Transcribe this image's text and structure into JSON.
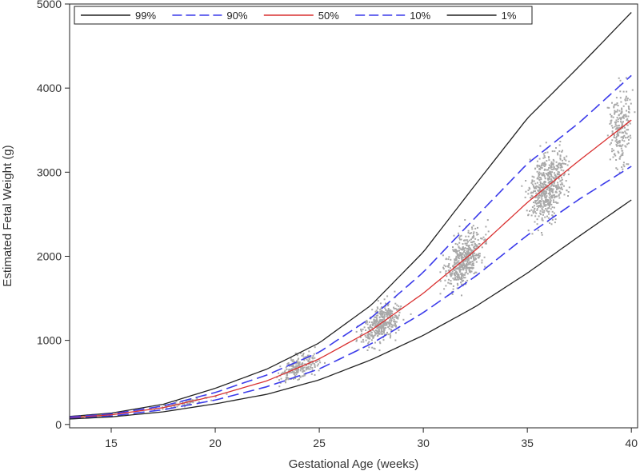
{
  "chart_data": {
    "type": "scatter",
    "title": "",
    "xlabel": "Gestational Age (weeks)",
    "ylabel": "Estimated Fetal Weight (g)",
    "xlim": [
      13,
      40.3
    ],
    "ylim": [
      -40,
      5000
    ],
    "xticks": [
      15,
      20,
      25,
      30,
      35,
      40
    ],
    "yticks": [
      0,
      1000,
      2000,
      3000,
      4000,
      5000
    ],
    "grid": false,
    "legend_position": "top",
    "series": [
      {
        "name": "99%",
        "style": "solid",
        "color": "#222222",
        "x": [
          13,
          15,
          17.5,
          20,
          22.5,
          25,
          27.5,
          30,
          32.5,
          35,
          37.5,
          40
        ],
        "values": [
          95,
          135,
          240,
          430,
          660,
          970,
          1420,
          2050,
          2850,
          3640,
          4260,
          4900
        ]
      },
      {
        "name": "90%",
        "style": "dashed",
        "color": "#3b3bea",
        "x": [
          13,
          15,
          17.5,
          20,
          22.5,
          25,
          27.5,
          30,
          32.5,
          35,
          37.5,
          40
        ],
        "values": [
          90,
          125,
          220,
          380,
          590,
          860,
          1270,
          1810,
          2460,
          3100,
          3590,
          4150
        ]
      },
      {
        "name": "50%",
        "style": "solid",
        "color": "#d93030",
        "x": [
          13,
          15,
          17.5,
          20,
          22.5,
          25,
          27.5,
          30,
          32.5,
          35,
          37.5,
          40
        ],
        "values": [
          80,
          115,
          200,
          340,
          520,
          780,
          1120,
          1560,
          2070,
          2640,
          3140,
          3620
        ]
      },
      {
        "name": "10%",
        "style": "dashed",
        "color": "#3b3bea",
        "x": [
          13,
          15,
          17.5,
          20,
          22.5,
          25,
          27.5,
          30,
          32.5,
          35,
          37.5,
          40
        ],
        "values": [
          72,
          100,
          175,
          290,
          450,
          660,
          960,
          1330,
          1760,
          2250,
          2680,
          3070
        ]
      },
      {
        "name": "1%",
        "style": "solid",
        "color": "#222222",
        "x": [
          13,
          15,
          17.5,
          20,
          22.5,
          25,
          27.5,
          30,
          32.5,
          35,
          37.5,
          40
        ],
        "values": [
          65,
          90,
          150,
          245,
          360,
          530,
          770,
          1060,
          1400,
          1800,
          2240,
          2670
        ]
      }
    ],
    "scatter_clusters": [
      {
        "x_center": 14,
        "x_spread": 0.9,
        "y_center": 95,
        "y_spread": 10,
        "count": 60
      },
      {
        "x_center": 18.5,
        "x_spread": 1.5,
        "y_center": 260,
        "y_spread": 30,
        "count": 60
      },
      {
        "x_center": 24,
        "x_spread": 1.0,
        "y_center": 700,
        "y_spread": 110,
        "count": 220
      },
      {
        "x_center": 28,
        "x_spread": 0.9,
        "y_center": 1250,
        "y_spread": 170,
        "count": 380
      },
      {
        "x_center": 32,
        "x_spread": 0.9,
        "y_center": 1950,
        "y_spread": 240,
        "count": 480
      },
      {
        "x_center": 36,
        "x_spread": 0.9,
        "y_center": 2750,
        "y_spread": 320,
        "count": 550
      },
      {
        "x_center": 39.5,
        "x_spread": 0.5,
        "y_center": 3500,
        "y_spread": 380,
        "count": 220
      }
    ],
    "scatter_color": "#a8a8a8"
  }
}
